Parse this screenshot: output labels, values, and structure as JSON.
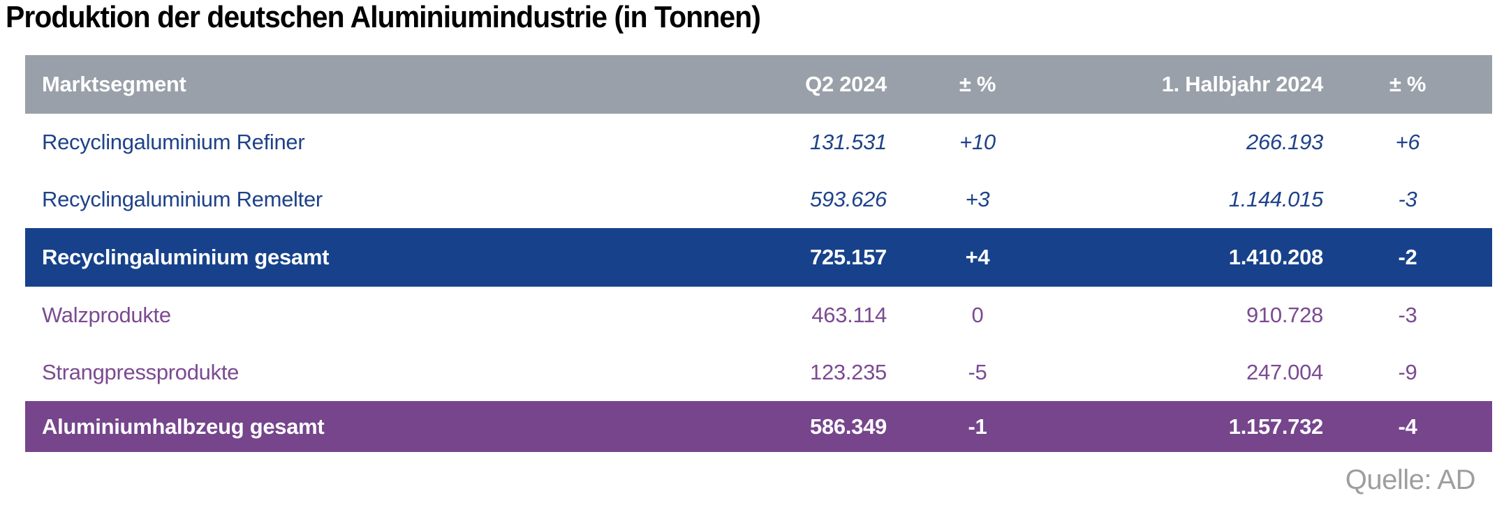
{
  "title": "Produktion der deutschen Aluminiumindustrie (in Tonnen)",
  "source_label": "Quelle: AD",
  "colors": {
    "header_bg": "#99A0A9",
    "recycling_text": "#1E4289",
    "recycling_total_bg": "#17428B",
    "halbzeug_text": "#7B4A91",
    "halbzeug_total_bg": "#76458C",
    "source_text": "#9E9E9E"
  },
  "table": {
    "header": {
      "segment": "Marktsegment",
      "q2": "Q2 2024",
      "q2_pct": "± %",
      "h1": "1. Halbjahr 2024",
      "h1_pct": "± %"
    },
    "rows": [
      {
        "label": "Recyclingaluminium Refiner",
        "q2": "131.531",
        "q2_pct": "+10",
        "h1": "266.193",
        "h1_pct": "+6"
      },
      {
        "label": "Recyclingaluminium Remelter",
        "q2": "593.626",
        "q2_pct": "+3",
        "h1": "1.144.015",
        "h1_pct": "-3"
      },
      {
        "label": "Recyclingaluminium gesamt",
        "q2": "725.157",
        "q2_pct": "+4",
        "h1": "1.410.208",
        "h1_pct": "-2"
      },
      {
        "label": "Walzprodukte",
        "q2": "463.114",
        "q2_pct": "0",
        "h1": "910.728",
        "h1_pct": "-3"
      },
      {
        "label": "Strangpressprodukte",
        "q2": "123.235",
        "q2_pct": "-5",
        "h1": "247.004",
        "h1_pct": "-9"
      },
      {
        "label": "Aluminiumhalbzeug gesamt",
        "q2": "586.349",
        "q2_pct": "-1",
        "h1": "1.157.732",
        "h1_pct": "-4"
      }
    ]
  },
  "chart_data": {
    "type": "table",
    "title": "Produktion der deutschen Aluminiumindustrie (in Tonnen)",
    "columns": [
      "Marktsegment",
      "Q2 2024",
      "± %",
      "1. Halbjahr 2024",
      "± %"
    ],
    "rows": [
      [
        "Recyclingaluminium Refiner",
        "131.531",
        "+10",
        "266.193",
        "+6"
      ],
      [
        "Recyclingaluminium Remelter",
        "593.626",
        "+3",
        "1.144.015",
        "-3"
      ],
      [
        "Recyclingaluminium gesamt",
        "725.157",
        "+4",
        "1.410.208",
        "-2"
      ],
      [
        "Walzprodukte",
        "463.114",
        "0",
        "910.728",
        "-3"
      ],
      [
        "Strangpressprodukte",
        "123.235",
        "-5",
        "247.004",
        "-9"
      ],
      [
        "Aluminiumhalbzeug gesamt",
        "586.349",
        "-1",
        "1.157.732",
        "-4"
      ]
    ],
    "values_q2_2024": [
      131531,
      593626,
      725157,
      463114,
      123235,
      586349
    ],
    "pct_change_q2": [
      10,
      3,
      4,
      0,
      -5,
      -1
    ],
    "values_h1_2024": [
      266193,
      1144015,
      1410208,
      910728,
      247004,
      1157732
    ],
    "pct_change_h1": [
      6,
      -3,
      -2,
      -3,
      -9,
      -4
    ],
    "source": "Quelle: AD"
  }
}
